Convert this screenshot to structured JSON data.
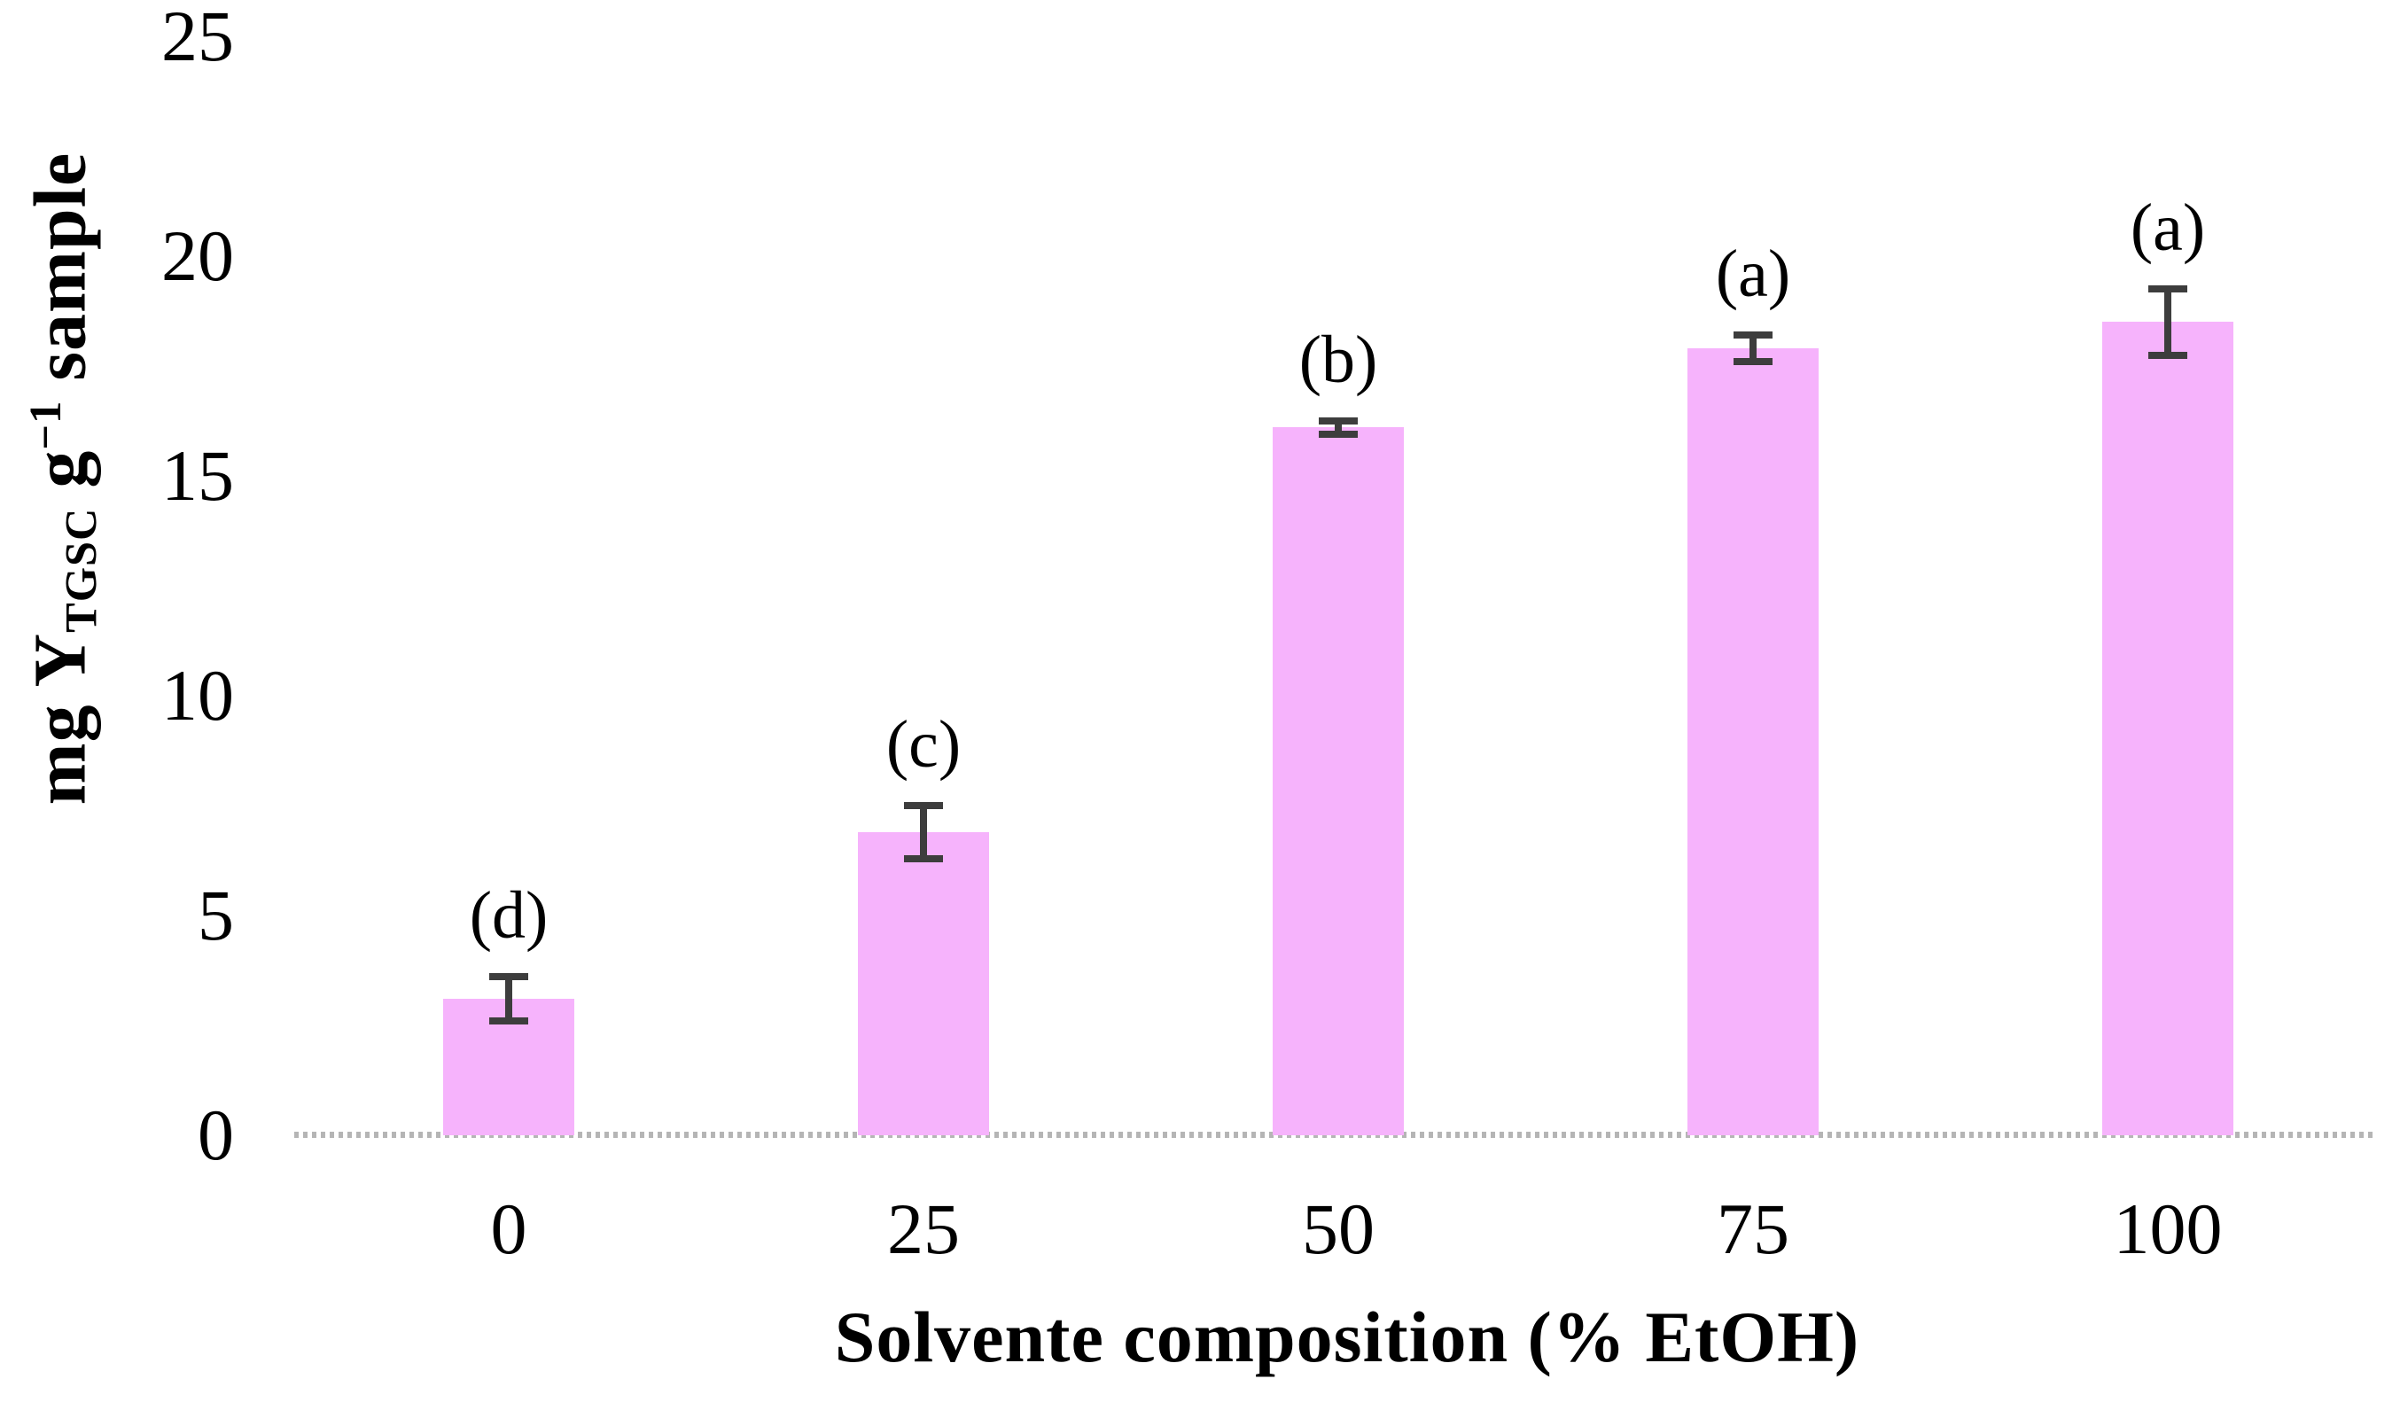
{
  "chart_data": {
    "type": "bar",
    "title": "",
    "xlabel": "Solvente composition (% EtOH)",
    "ylabel": {
      "pre": "mg Y",
      "sub": "TGSC",
      "mid": " g",
      "sup": "−1",
      "post": " sample"
    },
    "categories": [
      "0",
      "25",
      "50",
      "75",
      "100"
    ],
    "values": [
      3.1,
      6.9,
      16.1,
      17.9,
      18.5
    ],
    "errors": [
      0.5,
      0.6,
      0.15,
      0.3,
      0.75
    ],
    "sig_labels": [
      "(d)",
      "(c)",
      "(b)",
      "(a)",
      "(a)"
    ],
    "yticks": [
      0,
      5,
      10,
      15,
      20,
      25
    ],
    "ylim": [
      0,
      25
    ],
    "grid": false,
    "legend": "none",
    "colors": {
      "bar_fill": "#f6b3fc",
      "error_bar": "#3d3d3d",
      "axis_line": "#b5b5b5",
      "text": "#000000"
    }
  }
}
